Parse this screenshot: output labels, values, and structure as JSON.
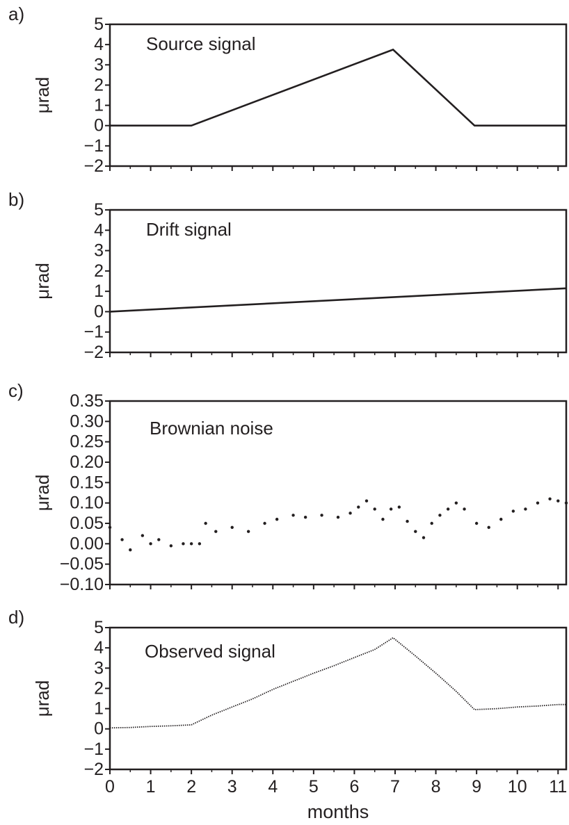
{
  "chart_data": [
    {
      "type": "line",
      "panel": "a)",
      "title": "Source signal",
      "ylabel": "μrad",
      "ylim": [
        -2,
        5
      ],
      "xlim": [
        0,
        11.2
      ],
      "yticks": [
        -2,
        -1,
        0,
        1,
        2,
        3,
        4,
        5
      ],
      "ytick_labels": [
        "−2",
        "−1",
        "0",
        "1",
        "2",
        "3",
        "4",
        "5"
      ],
      "series": [
        {
          "x": [
            0,
            2,
            6.95,
            8.95,
            11.2
          ],
          "y": [
            0,
            0,
            3.75,
            0,
            0
          ]
        }
      ]
    },
    {
      "type": "line",
      "panel": "b)",
      "title": "Drift signal",
      "ylabel": "μrad",
      "ylim": [
        -2,
        5
      ],
      "xlim": [
        0,
        11.2
      ],
      "yticks": [
        -2,
        -1,
        0,
        1,
        2,
        3,
        4,
        5
      ],
      "ytick_labels": [
        "−2",
        "−1",
        "0",
        "1",
        "2",
        "3",
        "4",
        "5"
      ],
      "series": [
        {
          "x": [
            0,
            11.2
          ],
          "y": [
            0,
            1.15
          ]
        }
      ]
    },
    {
      "type": "scatter",
      "panel": "c)",
      "title": "Brownian noise",
      "ylabel": "μrad",
      "ylim": [
        -0.1,
        0.35
      ],
      "xlim": [
        0,
        11.2
      ],
      "yticks": [
        -0.1,
        -0.05,
        0,
        0.05,
        0.1,
        0.15,
        0.2,
        0.25,
        0.3,
        0.35
      ],
      "ytick_labels": [
        "−0.10",
        "−0.05",
        "0.00",
        "0.05",
        "0.10",
        "0.15",
        "0.20",
        "0.25",
        "0.30",
        "0.35"
      ],
      "series": [
        {
          "x": [
            0,
            0.3,
            0.5,
            0.8,
            1.0,
            1.2,
            1.5,
            1.8,
            2.0,
            2.2,
            2.35,
            2.6,
            3.0,
            3.4,
            3.8,
            4.1,
            4.5,
            4.8,
            5.2,
            5.6,
            5.9,
            6.1,
            6.3,
            6.5,
            6.7,
            6.9,
            7.1,
            7.3,
            7.5,
            7.7,
            7.9,
            8.1,
            8.3,
            8.5,
            8.7,
            9.0,
            9.3,
            9.6,
            9.9,
            10.2,
            10.5,
            10.8,
            11.0,
            11.2
          ],
          "y": [
            0.04,
            0.01,
            -0.015,
            0.02,
            0.0,
            0.01,
            -0.005,
            0.0,
            0.0,
            0.0,
            0.05,
            0.03,
            0.04,
            0.03,
            0.05,
            0.06,
            0.07,
            0.065,
            0.07,
            0.065,
            0.075,
            0.09,
            0.105,
            0.085,
            0.06,
            0.085,
            0.09,
            0.055,
            0.03,
            0.015,
            0.05,
            0.07,
            0.085,
            0.1,
            0.085,
            0.05,
            0.04,
            0.06,
            0.08,
            0.085,
            0.1,
            0.11,
            0.105,
            0.1
          ]
        }
      ]
    },
    {
      "type": "line",
      "panel": "d)",
      "title": "Observed signal",
      "ylabel": "μrad",
      "xlabel": "months",
      "ylim": [
        -2,
        5
      ],
      "xlim": [
        0,
        11.2
      ],
      "yticks": [
        -2,
        -1,
        0,
        1,
        2,
        3,
        4,
        5
      ],
      "ytick_labels": [
        "−2",
        "−1",
        "0",
        "1",
        "2",
        "3",
        "4",
        "5"
      ],
      "xticks": [
        0,
        1,
        2,
        3,
        4,
        5,
        6,
        7,
        8,
        9,
        10,
        11
      ],
      "xtick_labels": [
        "0",
        "1",
        "2",
        "3",
        "4",
        "5",
        "6",
        "7",
        "8",
        "9",
        "10",
        "11"
      ],
      "series": [
        {
          "x": [
            0,
            0.5,
            1.0,
            1.5,
            2.0,
            2.5,
            3.0,
            3.5,
            4.0,
            4.5,
            5.0,
            5.5,
            6.0,
            6.5,
            6.95,
            7.5,
            8.0,
            8.5,
            8.95,
            9.5,
            10.0,
            10.5,
            11.0,
            11.2
          ],
          "y": [
            0.05,
            0.07,
            0.12,
            0.15,
            0.2,
            0.68,
            1.08,
            1.48,
            1.95,
            2.35,
            2.75,
            3.12,
            3.52,
            3.92,
            4.5,
            3.6,
            2.75,
            1.85,
            0.95,
            1.0,
            1.08,
            1.13,
            1.2,
            1.2
          ]
        }
      ]
    }
  ]
}
